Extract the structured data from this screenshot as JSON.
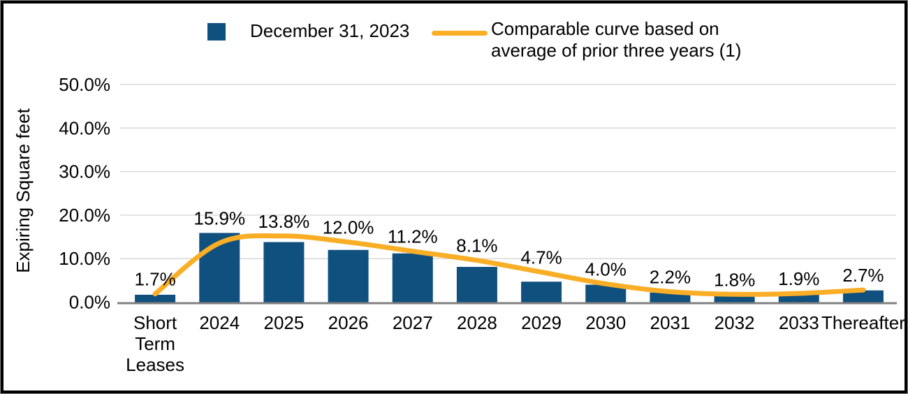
{
  "legend": {
    "bar_label": "December 31, 2023",
    "line_label_lines": [
      "Comparable curve based on",
      "average of prior three years (1)"
    ]
  },
  "colors": {
    "bar": "#10507E",
    "line": "#F9AE26",
    "gridline": "#D9D9D9",
    "axis_line": "#808080",
    "text": "#000000",
    "frame": "#000000"
  },
  "chart_data": {
    "type": "bar",
    "title": "",
    "xlabel": "",
    "ylabel": "Expiring Square feet",
    "categories": [
      "Short Term Leases",
      "2024",
      "2025",
      "2026",
      "2027",
      "2028",
      "2029",
      "2030",
      "2031",
      "2032",
      "2033",
      "Thereafter"
    ],
    "x_tick_lines": [
      [
        "Short",
        "Term",
        "Leases"
      ],
      [
        "2024"
      ],
      [
        "2025"
      ],
      [
        "2026"
      ],
      [
        "2027"
      ],
      [
        "2028"
      ],
      [
        "2029"
      ],
      [
        "2030"
      ],
      [
        "2031"
      ],
      [
        "2032"
      ],
      [
        "2033"
      ],
      [
        "Thereafter"
      ]
    ],
    "series": [
      {
        "name": "December 31, 2023",
        "type": "bar",
        "color": "#10507E",
        "values": [
          1.7,
          15.9,
          13.8,
          12.0,
          11.2,
          8.1,
          4.7,
          4.0,
          2.2,
          1.8,
          1.9,
          2.7
        ],
        "data_labels": [
          "1.7%",
          "15.9%",
          "13.8%",
          "12.0%",
          "11.2%",
          "8.1%",
          "4.7%",
          "4.0%",
          "2.2%",
          "1.8%",
          "1.9%",
          "2.7%"
        ]
      },
      {
        "name": "Comparable curve based on average of prior three years (1)",
        "type": "line",
        "smooth": true,
        "color": "#F9AE26",
        "values_estimated": [
          1.9,
          13.6,
          15.2,
          13.8,
          11.7,
          9.6,
          6.9,
          4.2,
          2.4,
          1.8,
          2.0,
          2.8
        ]
      }
    ],
    "y_ticks": [
      "0.0%",
      "10.0%",
      "20.0%",
      "30.0%",
      "40.0%",
      "50.0%"
    ],
    "ylim": [
      0,
      50
    ],
    "grid": true,
    "legend_position": "top"
  }
}
